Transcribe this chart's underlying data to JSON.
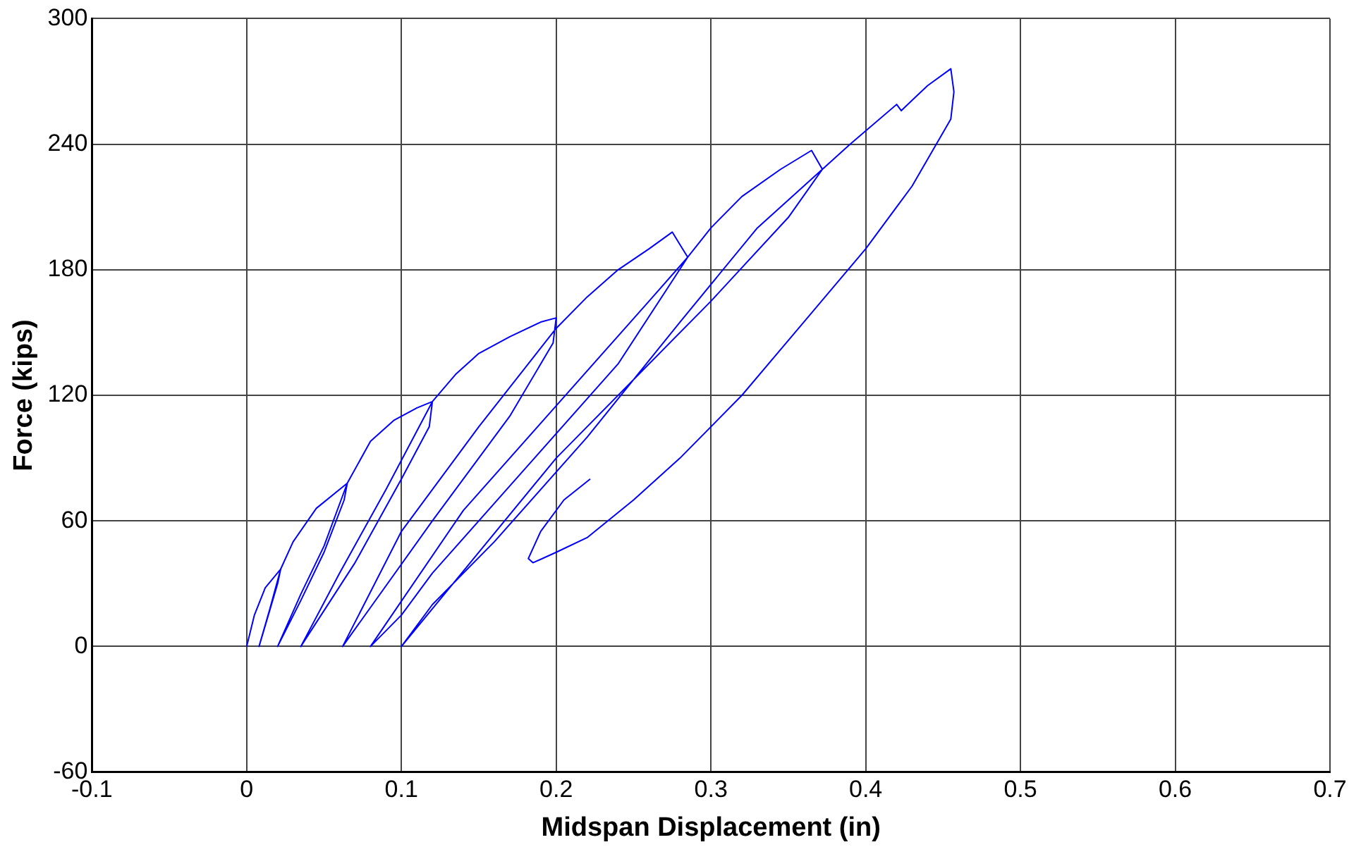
{
  "chart_data": {
    "type": "line",
    "xlabel": "Midspan Displacement (in)",
    "ylabel": "Force (kips)",
    "series": [
      {
        "color": "#0000ff",
        "x": [
          0,
          0.005,
          0.012,
          0.022,
          0.02,
          0.014,
          0.008,
          0.015,
          0.022,
          0.03,
          0.045,
          0.065,
          0.063,
          0.05,
          0.035,
          0.02,
          0.035,
          0.05,
          0.065,
          0.08,
          0.095,
          0.11,
          0.12,
          0.118,
          0.1,
          0.07,
          0.035,
          0.06,
          0.09,
          0.12,
          0.135,
          0.15,
          0.17,
          0.19,
          0.2,
          0.198,
          0.17,
          0.12,
          0.062,
          0.1,
          0.15,
          0.2,
          0.22,
          0.24,
          0.26,
          0.275,
          0.28,
          0.285,
          0.26,
          0.2,
          0.14,
          0.08,
          0.1,
          0.12,
          0.18,
          0.24,
          0.285,
          0.3,
          0.32,
          0.345,
          0.365,
          0.372,
          0.35,
          0.3,
          0.2,
          0.1,
          0.12,
          0.16,
          0.22,
          0.28,
          0.33,
          0.372,
          0.39,
          0.42,
          0.423,
          0.43,
          0.44,
          0.455,
          0.457,
          0.455,
          0.43,
          0.4,
          0.36,
          0.32,
          0.28,
          0.25,
          0.22,
          0.2,
          0.185,
          0.182,
          0.19,
          0.205,
          0.222
        ],
        "values": [
          0,
          15,
          28,
          37,
          30,
          15,
          0,
          18,
          37,
          50,
          66,
          78,
          70,
          45,
          22,
          0,
          25,
          48,
          78,
          98,
          108,
          114,
          117,
          105,
          80,
          40,
          0,
          35,
          75,
          117,
          130,
          140,
          148,
          155,
          157,
          145,
          110,
          60,
          0,
          55,
          105,
          152,
          167,
          180,
          190,
          198,
          192,
          186,
          165,
          115,
          65,
          0,
          15,
          35,
          85,
          135,
          186,
          200,
          215,
          228,
          237,
          228,
          205,
          165,
          90,
          0,
          20,
          50,
          100,
          155,
          200,
          228,
          240,
          259,
          256,
          261,
          268,
          276,
          265,
          252,
          220,
          190,
          155,
          120,
          90,
          70,
          52,
          45,
          40,
          42,
          55,
          70,
          80
        ]
      }
    ],
    "xlim": [
      -0.1,
      0.7
    ],
    "xticks": [
      -0.1,
      0,
      0.1,
      0.2,
      0.3,
      0.4,
      0.5,
      0.6,
      0.7
    ],
    "ylim": [
      -60,
      300
    ],
    "yticks": [
      -60,
      0,
      60,
      120,
      180,
      240,
      300
    ],
    "grid": true,
    "legend": false,
    "marker": "none",
    "line_style": "solid"
  }
}
